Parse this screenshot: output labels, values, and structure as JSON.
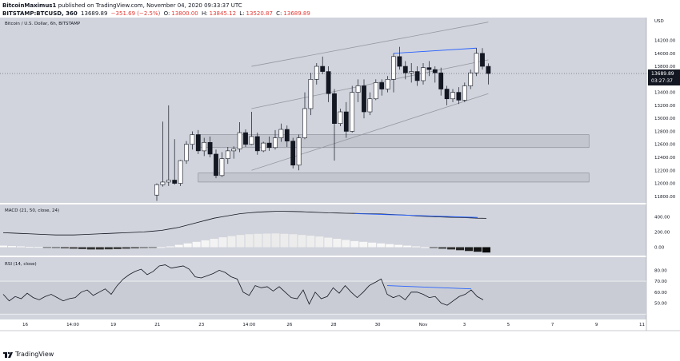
{
  "header": {
    "line1_user": "BitcoinMaximus1",
    "line1_rest": "published on TradingView.com, November 04, 2020 09:33:37 UTC",
    "symbol": "BITSTAMP:BTCUSD, 360",
    "last": "13689.89",
    "change": "−351.69 (−2.5%)",
    "o_label": "O:",
    "o_value": "13800.00",
    "h_label": "H:",
    "h_value": "13845.12",
    "l_label": "L:",
    "l_value": "13520.87",
    "c_label": "C:",
    "c_value": "13689.89"
  },
  "footer": {
    "brand": "TradingView"
  },
  "colors": {
    "panel_bg": "#d1d4dc",
    "up_candle": "#ffffff",
    "down_candle": "#131722",
    "channel": "#9598a1",
    "divergence": "#2962ff",
    "price_tag_bg": "#131722",
    "support_zone": "#c3c6ce"
  },
  "chart_data": [
    {
      "type": "candlestick",
      "title": "Bitcoin / U.S. Dollar, 6h, BITSTAMP",
      "unit": "USD",
      "ylim": [
        11700,
        14550
      ],
      "y_ticks": [
        11800,
        12000,
        12200,
        12400,
        12600,
        12800,
        13000,
        13200,
        13400,
        13600,
        13800,
        14000,
        14200
      ],
      "x_ticks": [
        "16",
        "14:00",
        "19",
        "21",
        "23",
        "14:00",
        "26",
        "28",
        "30",
        "Nov",
        "3",
        "5",
        "7",
        "9",
        "11"
      ],
      "last_price_label": "13689.89",
      "countdown_label": "03:27:37",
      "candles": [
        {
          "o": 11820,
          "h": 12000,
          "l": 11730,
          "c": 11980
        },
        {
          "o": 11980,
          "h": 12950,
          "l": 11950,
          "c": 12020
        },
        {
          "o": 12020,
          "h": 13200,
          "l": 11960,
          "c": 12050
        },
        {
          "o": 12050,
          "h": 12680,
          "l": 11980,
          "c": 12000
        },
        {
          "o": 12000,
          "h": 12360,
          "l": 11960,
          "c": 12350
        },
        {
          "o": 12350,
          "h": 12650,
          "l": 12300,
          "c": 12600
        },
        {
          "o": 12600,
          "h": 12800,
          "l": 12520,
          "c": 12750
        },
        {
          "o": 12750,
          "h": 12820,
          "l": 12450,
          "c": 12500
        },
        {
          "o": 12500,
          "h": 12700,
          "l": 12420,
          "c": 12630
        },
        {
          "o": 12630,
          "h": 12720,
          "l": 12400,
          "c": 12450
        },
        {
          "o": 12450,
          "h": 12520,
          "l": 12080,
          "c": 12120
        },
        {
          "o": 12120,
          "h": 12480,
          "l": 12100,
          "c": 12380
        },
        {
          "o": 12380,
          "h": 12560,
          "l": 12300,
          "c": 12500
        },
        {
          "o": 12500,
          "h": 12570,
          "l": 12380,
          "c": 12530
        },
        {
          "o": 12530,
          "h": 12940,
          "l": 12480,
          "c": 12780
        },
        {
          "o": 12780,
          "h": 12830,
          "l": 12560,
          "c": 12600
        },
        {
          "o": 12600,
          "h": 13100,
          "l": 12590,
          "c": 12720
        },
        {
          "o": 12720,
          "h": 12780,
          "l": 12440,
          "c": 12500
        },
        {
          "o": 12500,
          "h": 12640,
          "l": 12480,
          "c": 12620
        },
        {
          "o": 12620,
          "h": 12720,
          "l": 12500,
          "c": 12550
        },
        {
          "o": 12550,
          "h": 12820,
          "l": 12520,
          "c": 12700
        },
        {
          "o": 12700,
          "h": 12920,
          "l": 12640,
          "c": 12830
        },
        {
          "o": 12830,
          "h": 12890,
          "l": 12560,
          "c": 12650
        },
        {
          "o": 12650,
          "h": 12700,
          "l": 12230,
          "c": 12280
        },
        {
          "o": 12280,
          "h": 12750,
          "l": 12200,
          "c": 12700
        },
        {
          "o": 12700,
          "h": 13400,
          "l": 12680,
          "c": 13150
        },
        {
          "o": 13150,
          "h": 13700,
          "l": 13050,
          "c": 13600
        },
        {
          "o": 13600,
          "h": 13850,
          "l": 13520,
          "c": 13800
        },
        {
          "o": 13800,
          "h": 13950,
          "l": 13680,
          "c": 13720
        },
        {
          "o": 13720,
          "h": 13800,
          "l": 13250,
          "c": 13380
        },
        {
          "o": 13380,
          "h": 13450,
          "l": 12350,
          "c": 12920
        },
        {
          "o": 12920,
          "h": 13150,
          "l": 12880,
          "c": 13100
        },
        {
          "o": 13100,
          "h": 13250,
          "l": 12700,
          "c": 12800
        },
        {
          "o": 12800,
          "h": 13500,
          "l": 12780,
          "c": 13400
        },
        {
          "o": 13400,
          "h": 13600,
          "l": 13250,
          "c": 13500
        },
        {
          "o": 13500,
          "h": 13600,
          "l": 13000,
          "c": 13100
        },
        {
          "o": 13100,
          "h": 13400,
          "l": 13050,
          "c": 13300
        },
        {
          "o": 13300,
          "h": 13600,
          "l": 13280,
          "c": 13550
        },
        {
          "o": 13550,
          "h": 13600,
          "l": 13350,
          "c": 13450
        },
        {
          "o": 13450,
          "h": 13650,
          "l": 13400,
          "c": 13600
        },
        {
          "o": 13600,
          "h": 14000,
          "l": 13400,
          "c": 13950
        },
        {
          "o": 13950,
          "h": 14100,
          "l": 13750,
          "c": 13800
        },
        {
          "o": 13800,
          "h": 13880,
          "l": 13600,
          "c": 13700
        },
        {
          "o": 13700,
          "h": 13850,
          "l": 13550,
          "c": 13720
        },
        {
          "o": 13720,
          "h": 13800,
          "l": 13500,
          "c": 13580
        },
        {
          "o": 13580,
          "h": 13850,
          "l": 13520,
          "c": 13780
        },
        {
          "o": 13780,
          "h": 13880,
          "l": 13650,
          "c": 13750
        },
        {
          "o": 13750,
          "h": 13800,
          "l": 13550,
          "c": 13700
        },
        {
          "o": 13700,
          "h": 13780,
          "l": 13350,
          "c": 13450
        },
        {
          "o": 13450,
          "h": 13500,
          "l": 13200,
          "c": 13300
        },
        {
          "o": 13300,
          "h": 13450,
          "l": 13250,
          "c": 13400
        },
        {
          "o": 13400,
          "h": 13480,
          "l": 13220,
          "c": 13280
        },
        {
          "o": 13280,
          "h": 13550,
          "l": 13250,
          "c": 13500
        },
        {
          "o": 13500,
          "h": 13750,
          "l": 13450,
          "c": 13700
        },
        {
          "o": 13700,
          "h": 14080,
          "l": 13650,
          "c": 14000
        },
        {
          "o": 14000,
          "h": 14080,
          "l": 13750,
          "c": 13800
        },
        {
          "o": 13800,
          "h": 13845.12,
          "l": 13520.87,
          "c": 13689.89
        }
      ],
      "trendlines": [
        {
          "role": "channel-upper",
          "points": [
            [
              16,
              13800
            ],
            [
              56,
              14480
            ]
          ]
        },
        {
          "role": "channel-middle",
          "points": [
            [
              16,
              13150
            ],
            [
              56,
              13900
            ]
          ]
        },
        {
          "role": "channel-lower",
          "points": [
            [
              16,
              12200
            ],
            [
              56,
              13380
            ]
          ]
        },
        {
          "role": "divergence",
          "points": [
            [
              40,
              14000
            ],
            [
              54,
              14080
            ]
          ]
        }
      ],
      "zones": [
        {
          "role": "support-upper",
          "from_candle": 7,
          "to_candle": 73,
          "y_low": 12550,
          "y_high": 12750
        },
        {
          "role": "support-lower",
          "from_candle": 7,
          "to_candle": 73,
          "y_low": 12020,
          "y_high": 12160
        }
      ]
    },
    {
      "type": "bar",
      "title": "MACD (21, 50, close, 24)",
      "ylim": [
        -110,
        560
      ],
      "y_ticks": [
        400,
        200,
        0
      ],
      "y_tick_labels": [
        "400.00",
        "200.00",
        "0.00"
      ],
      "histogram": [
        20,
        15,
        10,
        5,
        2,
        -5,
        -10,
        -15,
        -20,
        -25,
        -30,
        -30,
        -28,
        -25,
        -20,
        -15,
        -10,
        -5,
        0,
        10,
        30,
        50,
        70,
        90,
        110,
        130,
        145,
        160,
        170,
        175,
        178,
        180,
        175,
        170,
        160,
        150,
        140,
        125,
        110,
        95,
        80,
        70,
        60,
        50,
        40,
        30,
        20,
        10,
        0,
        -10,
        -20,
        -30,
        -40,
        -50,
        -60,
        -70
      ],
      "macd_line": [
        190,
        185,
        180,
        175,
        170,
        165,
        160,
        160,
        160,
        165,
        170,
        175,
        180,
        185,
        190,
        195,
        200,
        210,
        220,
        240,
        260,
        290,
        320,
        350,
        380,
        400,
        420,
        440,
        450,
        460,
        465,
        470,
        470,
        468,
        465,
        460,
        455,
        450,
        448,
        445,
        443,
        440,
        438,
        435,
        430,
        425,
        420,
        410,
        405,
        400,
        395,
        392,
        390,
        385,
        380,
        378
      ],
      "divergence": {
        "from": [
          40,
          440
        ],
        "to": [
          54,
          390
        ]
      }
    },
    {
      "type": "line",
      "title": "RSI (14, close)",
      "ylim": [
        35,
        92
      ],
      "y_ticks": [
        80,
        70,
        60,
        50
      ],
      "y_tick_labels": [
        "80.00",
        "70.00",
        "60.00",
        "50.00"
      ],
      "band": [
        40,
        70
      ],
      "values": [
        58,
        52,
        56,
        54,
        59,
        55,
        53,
        56,
        58,
        55,
        52,
        54,
        55,
        60,
        62,
        57,
        60,
        63,
        58,
        66,
        72,
        76,
        79,
        81,
        76,
        79,
        84,
        85,
        82,
        83,
        84,
        81,
        74,
        73,
        75,
        77,
        80,
        78,
        74,
        72,
        60,
        57,
        66,
        64,
        65,
        61,
        65,
        60,
        55,
        54,
        62,
        49,
        60,
        54,
        56,
        64,
        59,
        66,
        60,
        55,
        60,
        66,
        69,
        72,
        58,
        55,
        57,
        53,
        60,
        60,
        58,
        55,
        56,
        50,
        48,
        52,
        56,
        58,
        62,
        56,
        53
      ],
      "divergence": {
        "from": [
          64,
          66
        ],
        "to": [
          78,
          63
        ]
      }
    }
  ]
}
